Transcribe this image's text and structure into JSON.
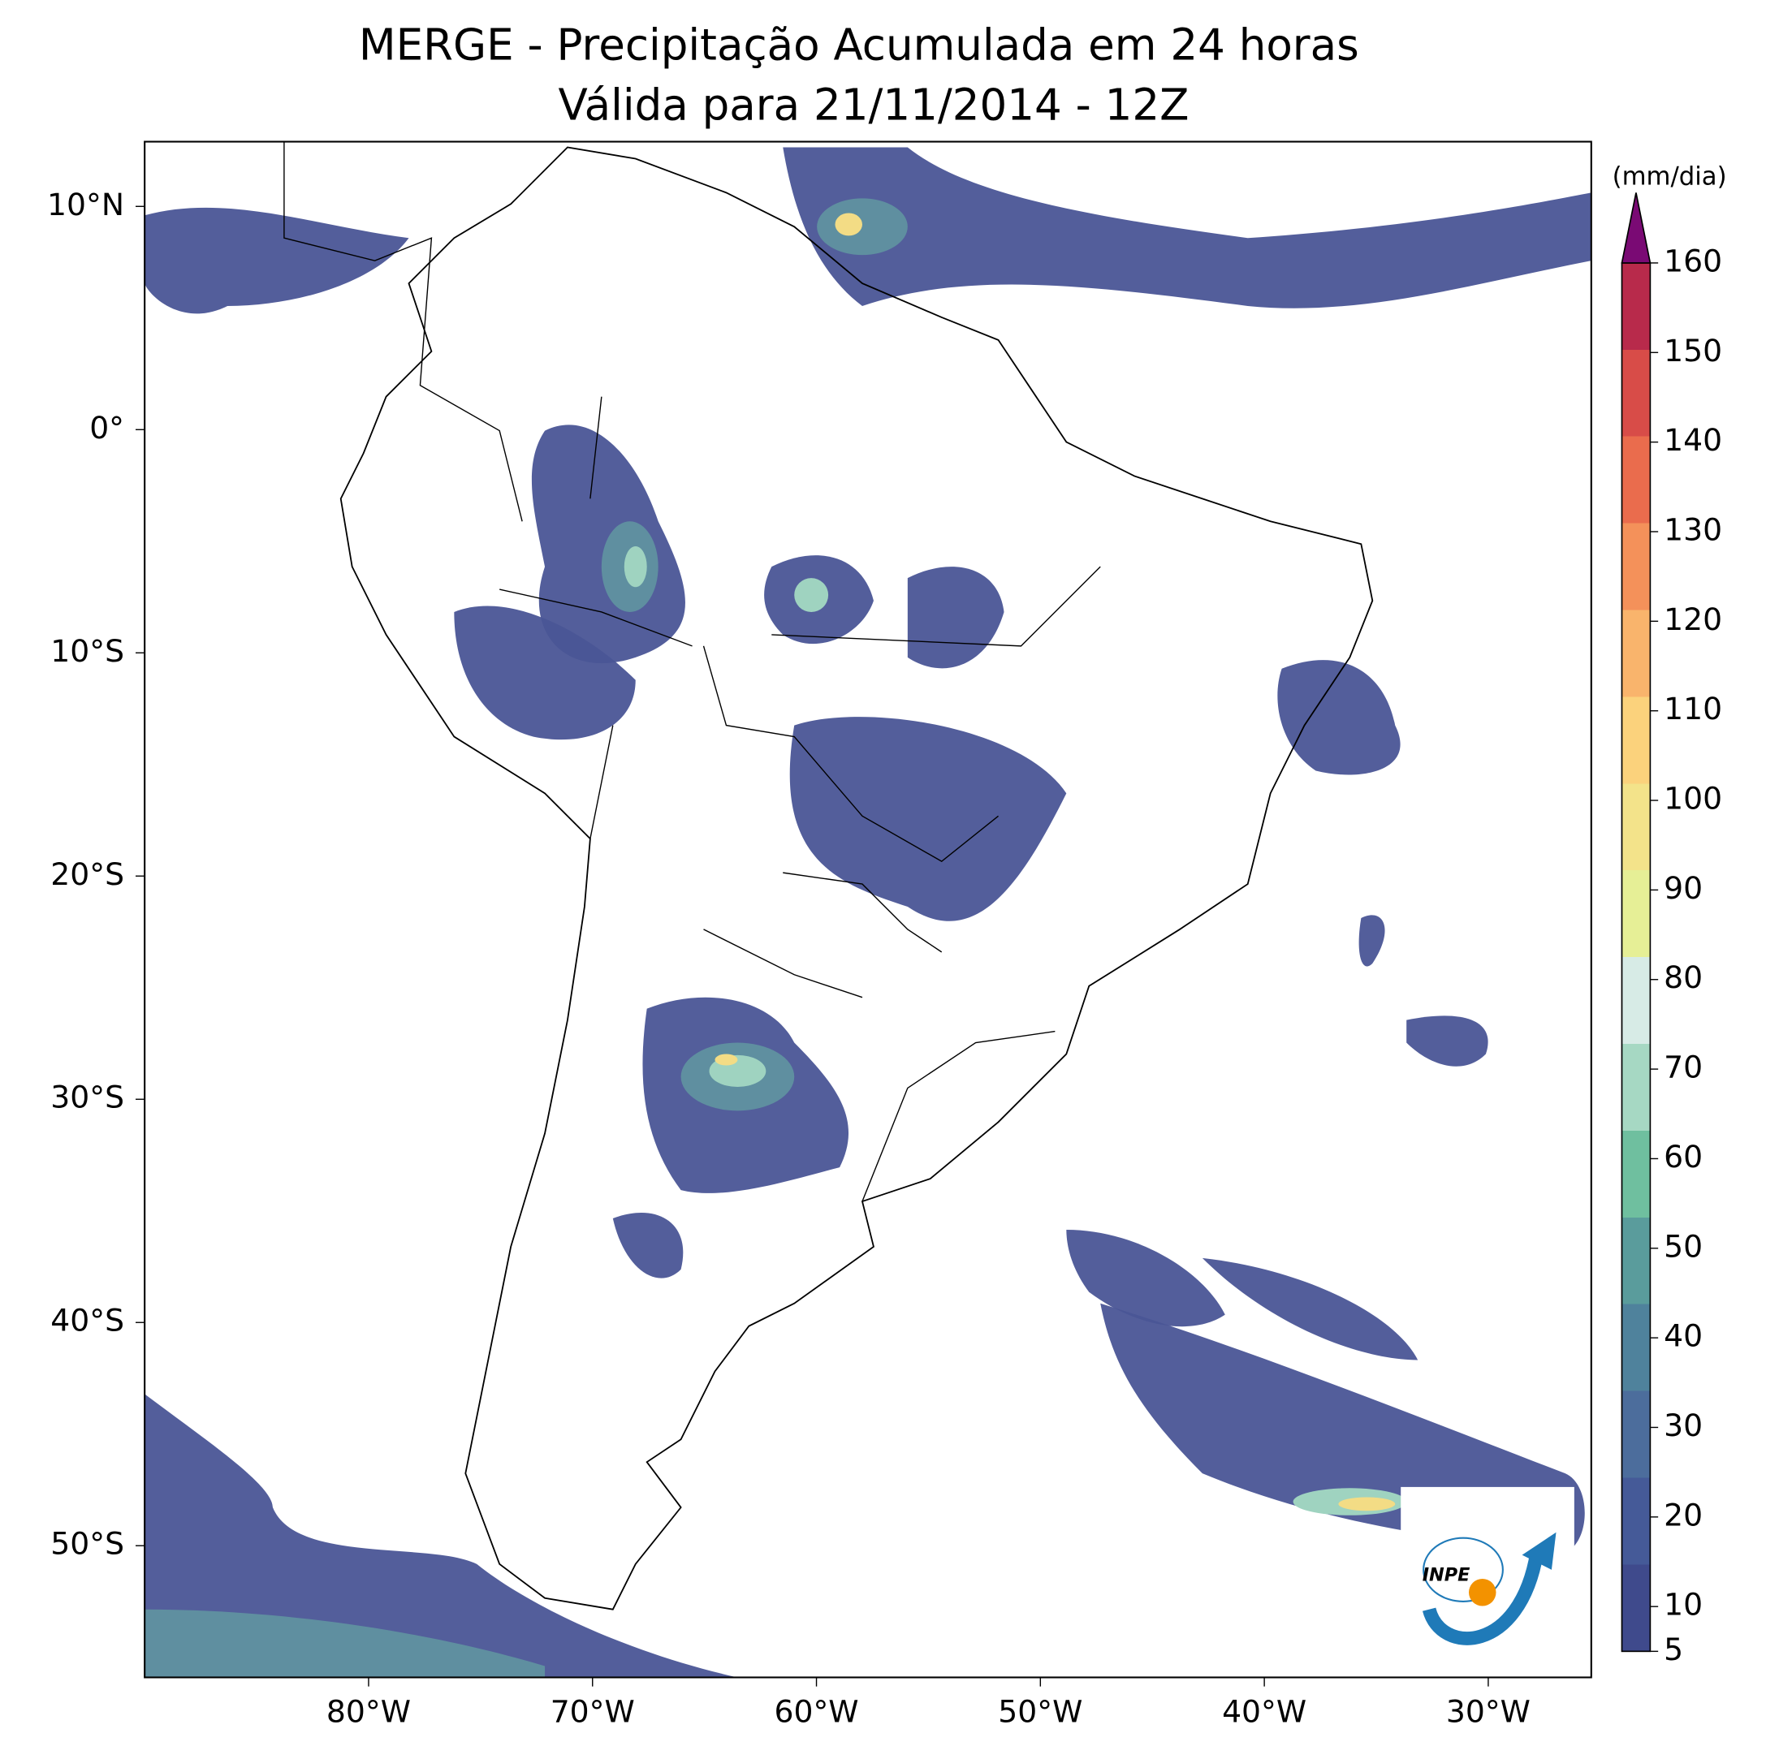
{
  "map": {
    "title": "MERGE - Precipitação Acumulada em 24 horas",
    "subtitle": "Válida para 21/11/2014 - 12Z",
    "xlim": [
      -90,
      -25.4
    ],
    "ylim": [
      -55.9,
      12.9
    ],
    "xticks": [
      {
        "value": -80,
        "label": "80°W"
      },
      {
        "value": -70,
        "label": "70°W"
      },
      {
        "value": -60,
        "label": "60°W"
      },
      {
        "value": -50,
        "label": "50°W"
      },
      {
        "value": -40,
        "label": "40°W"
      },
      {
        "value": -30,
        "label": "30°W"
      }
    ],
    "yticks": [
      {
        "value": 10,
        "label": "10°N"
      },
      {
        "value": 0,
        "label": "0°"
      },
      {
        "value": -10,
        "label": "10°S"
      },
      {
        "value": -20,
        "label": "20°S"
      },
      {
        "value": -30,
        "label": "30°S"
      },
      {
        "value": -40,
        "label": "40°S"
      },
      {
        "value": -50,
        "label": "50°S"
      }
    ],
    "colorbar": {
      "label": "(mm/dia)",
      "lim": [
        5,
        160
      ],
      "ticks": [
        5,
        10,
        20,
        30,
        40,
        50,
        60,
        70,
        80,
        90,
        100,
        110,
        120,
        130,
        140,
        150,
        160
      ],
      "colors": [
        "#3f4a8c",
        "#455a98",
        "#4c6d9c",
        "#4f829c",
        "#5a9c9c",
        "#6fbf9f",
        "#a6d8c3",
        "#d7ebe6",
        "#e6ef96",
        "#f3e38a",
        "#fbd27c",
        "#f9b46c",
        "#f4915a",
        "#ea6c4d",
        "#d84c48",
        "#b82a4b"
      ],
      "extend_color": "#7a0a74"
    },
    "logo_text": "INPE"
  }
}
